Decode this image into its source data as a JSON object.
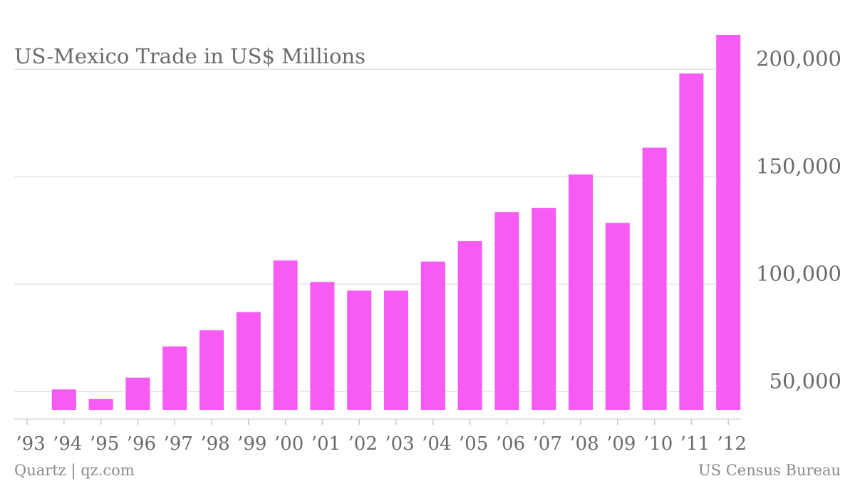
{
  "chart_data": {
    "type": "bar",
    "title": "US-Mexico Trade in US$ Millions",
    "categories": [
      "’93",
      "’94",
      "’95",
      "’96",
      "’97",
      "’98",
      "’99",
      "’00",
      "’01",
      "’02",
      "’03",
      "’04",
      "’05",
      "’06",
      "’07",
      "’08",
      "’09",
      "’10",
      "’11",
      "’12"
    ],
    "values": [
      null,
      51000,
      46500,
      56500,
      71000,
      78500,
      87000,
      111000,
      101000,
      97000,
      97000,
      110500,
      120000,
      133500,
      135500,
      151000,
      128500,
      163500,
      198000,
      216000
    ],
    "yticks": [
      50000,
      100000,
      150000,
      200000
    ],
    "ytick_labels": [
      "50,000",
      "100,000",
      "150,000",
      "200,000"
    ],
    "ylim": [
      41500,
      216000
    ],
    "y_axis_position": "right",
    "grid": "horizontal",
    "xlabel": "",
    "ylabel": "",
    "bar_color": "#f75bf4",
    "grid_color": "#e3e3e3",
    "axis_color": "#c8c8c8"
  },
  "footer": {
    "left": "Quartz | qz.com",
    "right": "US Census Bureau"
  }
}
